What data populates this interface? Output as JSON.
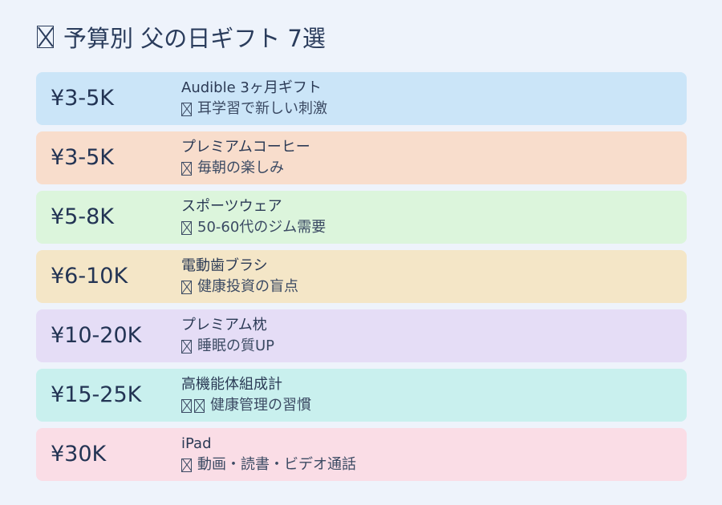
{
  "title": {
    "icon": "missing-glyph-icon",
    "text": "予算別 父の日ギフト 7選"
  },
  "items": [
    {
      "price": "¥3-5K",
      "name": "Audible 3ヶ月ギフト",
      "icons": [
        "missing-glyph-icon"
      ],
      "note": "耳学習で新しい刺激",
      "color": "#cbe5f8"
    },
    {
      "price": "¥3-5K",
      "name": "プレミアムコーヒー",
      "icons": [
        "missing-glyph-icon"
      ],
      "note": "毎朝の楽しみ",
      "color": "#f8ddcc"
    },
    {
      "price": "¥5-8K",
      "name": "スポーツウェア",
      "icons": [
        "missing-glyph-icon"
      ],
      "note": "50-60代のジム需要",
      "color": "#dcf5dc"
    },
    {
      "price": "¥6-10K",
      "name": "電動歯ブラシ",
      "icons": [
        "missing-glyph-icon"
      ],
      "note": "健康投資の盲点",
      "color": "#f4e6c7"
    },
    {
      "price": "¥10-20K",
      "name": "プレミアム枕",
      "icons": [
        "missing-glyph-icon"
      ],
      "note": "睡眠の質UP",
      "color": "#e5ddf6"
    },
    {
      "price": "¥15-25K",
      "name": "高機能体組成計",
      "icons": [
        "missing-glyph-icon",
        "missing-glyph-icon"
      ],
      "note": "健康管理の習慣",
      "color": "#c9f0ee"
    },
    {
      "price": "¥30K",
      "name": "iPad",
      "icons": [
        "missing-glyph-icon"
      ],
      "note": "動画・読書・ビデオ通話",
      "color": "#fadde6"
    }
  ]
}
